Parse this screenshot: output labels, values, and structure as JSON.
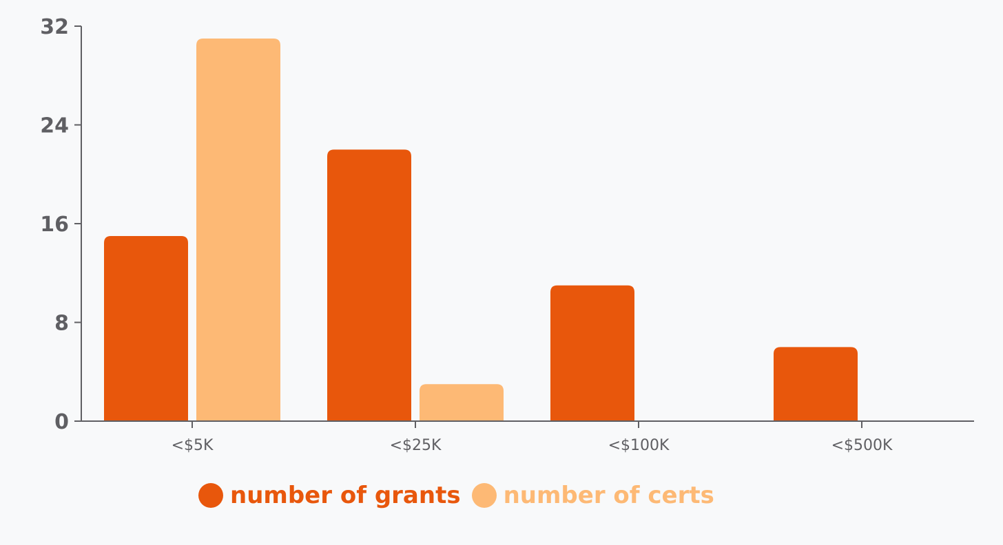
{
  "chart_data": {
    "type": "bar",
    "title": "",
    "xlabel": "",
    "ylabel": "",
    "categories": [
      "<$5K",
      "<$25K",
      "<$100K",
      "<$500K"
    ],
    "series": [
      {
        "name": "number of grants",
        "color": "#e8570c",
        "values": [
          15,
          22,
          11,
          6
        ]
      },
      {
        "name": "number of certs",
        "color": "#fdb975",
        "values": [
          31,
          3,
          0,
          0
        ]
      }
    ],
    "ylim": [
      0,
      32
    ],
    "yticks": [
      0,
      8,
      16,
      24,
      32
    ],
    "grid": false,
    "legend_position": "bottom"
  }
}
